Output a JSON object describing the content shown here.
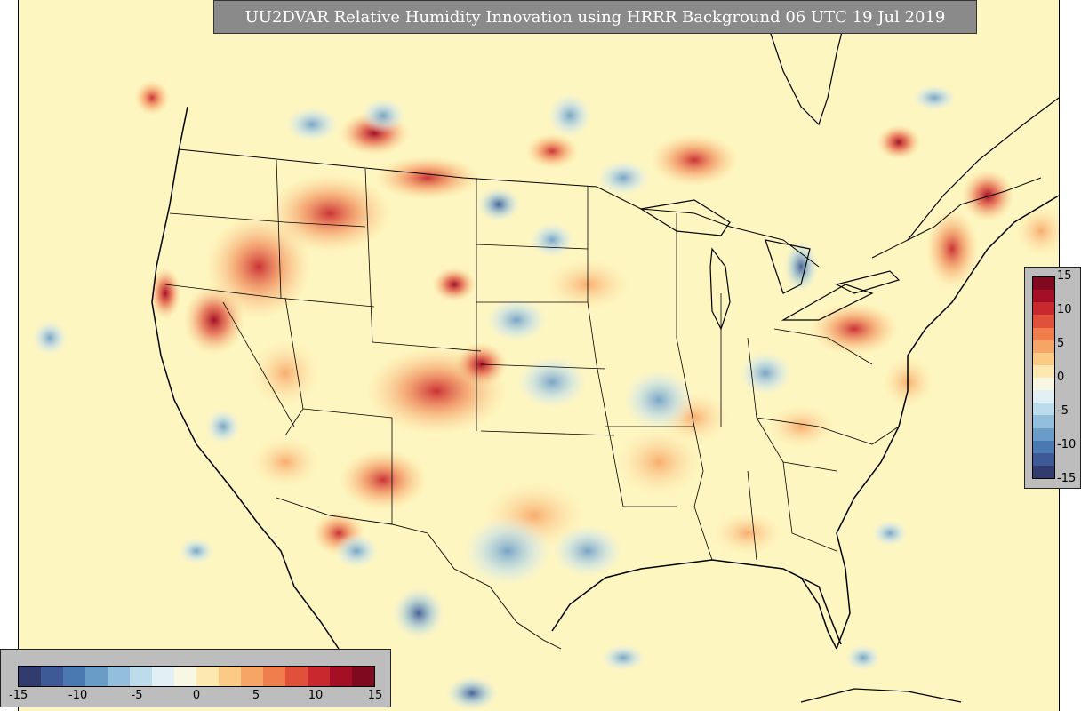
{
  "title": "UU2DVAR Relative Humidity Innovation using HRRR Background 06 UTC 19 Jul 2019",
  "colorbar": {
    "ticks": [
      "-15",
      "-10",
      "-5",
      "0",
      "5",
      "10",
      "15"
    ],
    "colors": [
      "#313b6e",
      "#3d5a96",
      "#4a78b0",
      "#6a9cc8",
      "#93bfdc",
      "#bcdcec",
      "#e2eff4",
      "#f8f7e4",
      "#fde8b0",
      "#fbcb85",
      "#f7a566",
      "#f07d4c",
      "#e0503a",
      "#c8282e",
      "#a50f26",
      "#7f0a1f"
    ]
  },
  "map": {
    "background_color": "#fef6c0",
    "border_color": "#000000"
  }
}
